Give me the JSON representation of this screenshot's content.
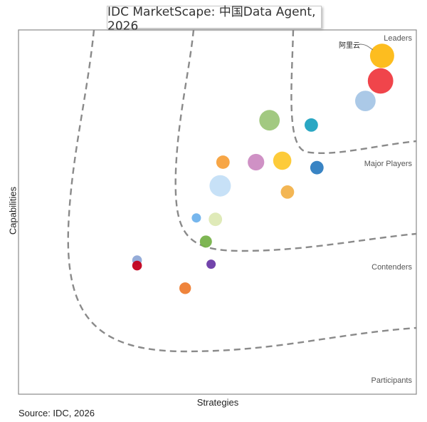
{
  "chart_data": {
    "type": "scatter",
    "title": "IDC MarketScape: 中国Data Agent, 2026",
    "xlabel": "Strategies",
    "ylabel": "Capabilities",
    "source": "Source: IDC, 2026",
    "zones": [
      "Leaders",
      "Major Players",
      "Contenders",
      "Participants"
    ],
    "xlim": [
      0,
      100
    ],
    "ylim": [
      0,
      100
    ],
    "grid": false,
    "points": [
      {
        "x": 91.4,
        "y": 92.9,
        "size": 1.0,
        "color": "#FDB913",
        "label": "阿里云"
      },
      {
        "x": 91.0,
        "y": 86.0,
        "size": 1.05,
        "color": "#EF3B41",
        "label": ""
      },
      {
        "x": 87.2,
        "y": 80.5,
        "size": 0.85,
        "color": "#A6C6E6",
        "label": ""
      },
      {
        "x": 63.1,
        "y": 75.2,
        "size": 0.85,
        "color": "#9DC67A",
        "label": ""
      },
      {
        "x": 73.6,
        "y": 73.9,
        "size": 0.55,
        "color": "#1FA2C0",
        "label": ""
      },
      {
        "x": 51.4,
        "y": 63.7,
        "size": 0.55,
        "color": "#F7A13C",
        "label": ""
      },
      {
        "x": 59.7,
        "y": 63.7,
        "size": 0.68,
        "color": "#CC8BC2",
        "label": ""
      },
      {
        "x": 66.3,
        "y": 64.1,
        "size": 0.75,
        "color": "#FDC82F",
        "label": ""
      },
      {
        "x": 75.0,
        "y": 62.2,
        "size": 0.55,
        "color": "#2E7DC1",
        "label": ""
      },
      {
        "x": 50.7,
        "y": 57.2,
        "size": 0.88,
        "color": "#C4DFF7",
        "label": ""
      },
      {
        "x": 67.6,
        "y": 55.5,
        "size": 0.55,
        "color": "#F2B24B",
        "label": ""
      },
      {
        "x": 44.7,
        "y": 48.4,
        "size": 0.38,
        "color": "#6FB2EC",
        "label": ""
      },
      {
        "x": 49.5,
        "y": 48.0,
        "size": 0.55,
        "color": "#DDE9B4",
        "label": ""
      },
      {
        "x": 47.1,
        "y": 41.9,
        "size": 0.5,
        "color": "#77B24A",
        "label": ""
      },
      {
        "x": 29.8,
        "y": 36.8,
        "size": 0.4,
        "color": "#8FA8D6",
        "label": ""
      },
      {
        "x": 29.8,
        "y": 35.3,
        "size": 0.4,
        "color": "#C2001C",
        "label": ""
      },
      {
        "x": 48.4,
        "y": 35.7,
        "size": 0.38,
        "color": "#6A3AA6",
        "label": ""
      },
      {
        "x": 41.9,
        "y": 29.1,
        "size": 0.48,
        "color": "#EE7D31",
        "label": ""
      }
    ]
  }
}
